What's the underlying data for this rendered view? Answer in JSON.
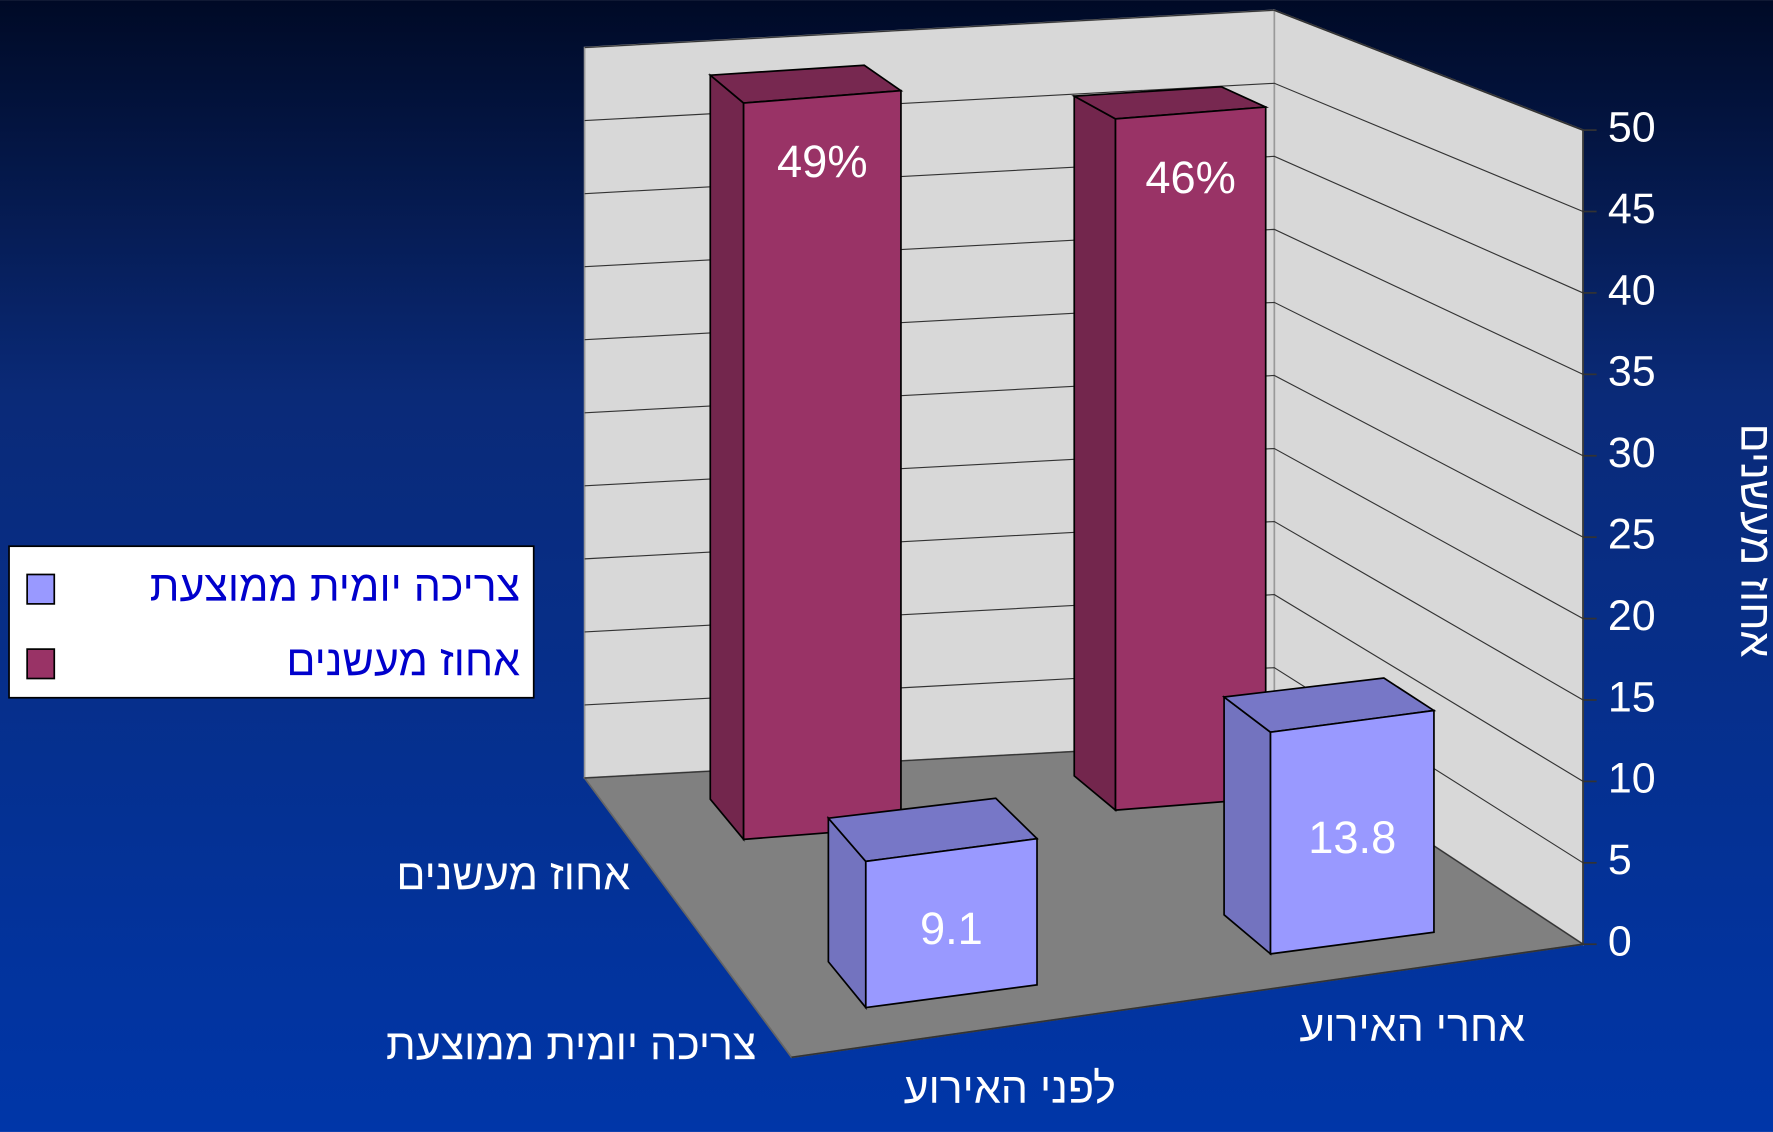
{
  "chart_data": {
    "type": "bar3d",
    "categories": [
      "לפני האירוע",
      "אחרי האירוע"
    ],
    "series": [
      {
        "name": "אחוז מעשנים",
        "color": "#993366",
        "values": [
          49,
          46
        ],
        "value_labels": [
          "49%",
          "46%"
        ]
      },
      {
        "name": "צריכה יומית ממוצעת",
        "color": "#9999ff",
        "values": [
          9.1,
          13.8
        ]
      }
    ],
    "y_label": "אחוז מעשנים",
    "ylim": [
      0,
      50
    ],
    "yticks": [
      0,
      5,
      10,
      15,
      20,
      25,
      30,
      35,
      40,
      45,
      50
    ],
    "grid": true,
    "legend": "left"
  }
}
